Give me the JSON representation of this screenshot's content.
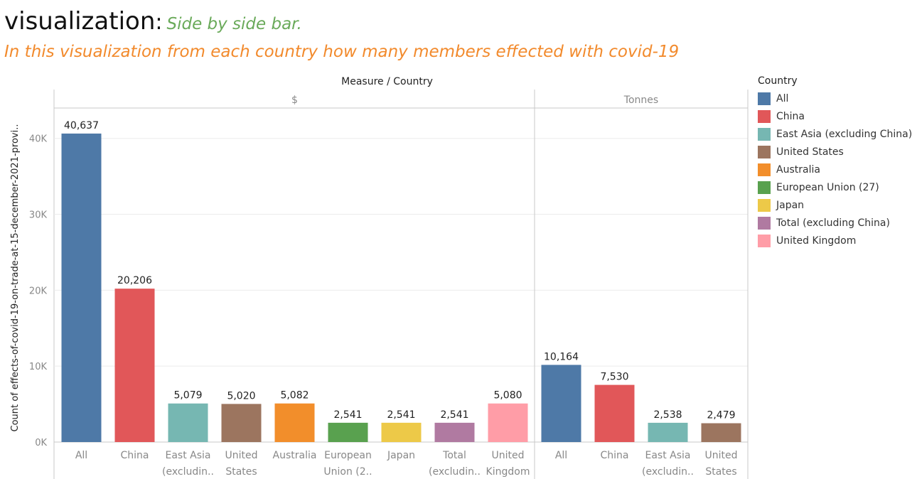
{
  "header": {
    "title": "visualization",
    "colon": ":",
    "subtitle": "Side by side bar.",
    "description": "In this visualization from each country how many members effected with covid-19"
  },
  "chart_data": {
    "type": "bar",
    "column_header": "Measure / Country",
    "ylabel": "Count of effects-of-covid-19-on-trade-at-15-december-2021-provi..",
    "ylim": [
      0,
      44000
    ],
    "yticks": [
      0,
      10000,
      20000,
      30000,
      40000
    ],
    "ytick_labels": [
      "0K",
      "10K",
      "20K",
      "30K",
      "40K"
    ],
    "grid": true,
    "panels": [
      {
        "label": "$",
        "categories": [
          {
            "name": "All",
            "label_lines": [
              "All"
            ],
            "value": 40637,
            "value_label": "40,637"
          },
          {
            "name": "China",
            "label_lines": [
              "China"
            ],
            "value": 20206,
            "value_label": "20,206"
          },
          {
            "name": "East Asia (excluding China)",
            "label_lines": [
              "East Asia",
              "(excludin.."
            ],
            "value": 5079,
            "value_label": "5,079"
          },
          {
            "name": "United States",
            "label_lines": [
              "United",
              "States"
            ],
            "value": 5020,
            "value_label": "5,020"
          },
          {
            "name": "Australia",
            "label_lines": [
              "Australia"
            ],
            "value": 5082,
            "value_label": "5,082"
          },
          {
            "name": "European Union (27)",
            "label_lines": [
              "European",
              "Union (2.."
            ],
            "value": 2541,
            "value_label": "2,541"
          },
          {
            "name": "Japan",
            "label_lines": [
              "Japan"
            ],
            "value": 2541,
            "value_label": "2,541"
          },
          {
            "name": "Total (excluding China)",
            "label_lines": [
              "Total",
              "(excludin.."
            ],
            "value": 2541,
            "value_label": "2,541"
          },
          {
            "name": "United Kingdom",
            "label_lines": [
              "United",
              "Kingdom"
            ],
            "value": 5080,
            "value_label": "5,080"
          }
        ]
      },
      {
        "label": "Tonnes",
        "categories": [
          {
            "name": "All",
            "label_lines": [
              "All"
            ],
            "value": 10164,
            "value_label": "10,164"
          },
          {
            "name": "China",
            "label_lines": [
              "China"
            ],
            "value": 7530,
            "value_label": "7,530"
          },
          {
            "name": "East Asia (excluding China)",
            "label_lines": [
              "East Asia",
              "(excludin.."
            ],
            "value": 2538,
            "value_label": "2,538"
          },
          {
            "name": "United States",
            "label_lines": [
              "United",
              "States"
            ],
            "value": 2479,
            "value_label": "2,479"
          }
        ]
      }
    ],
    "legend": {
      "title": "Country",
      "placement": "right",
      "items": [
        {
          "label": "All",
          "color": "#4e79a7"
        },
        {
          "label": "China",
          "color": "#e15759"
        },
        {
          "label": "East Asia (excluding China)",
          "color": "#76b7b2"
        },
        {
          "label": "United States",
          "color": "#9c755f"
        },
        {
          "label": "Australia",
          "color": "#f28e2b"
        },
        {
          "label": "European Union (27)",
          "color": "#59a14f"
        },
        {
          "label": "Japan",
          "color": "#edc948"
        },
        {
          "label": "Total (excluding China)",
          "color": "#b07aa1"
        },
        {
          "label": "United Kingdom",
          "color": "#ff9da7"
        }
      ]
    }
  }
}
